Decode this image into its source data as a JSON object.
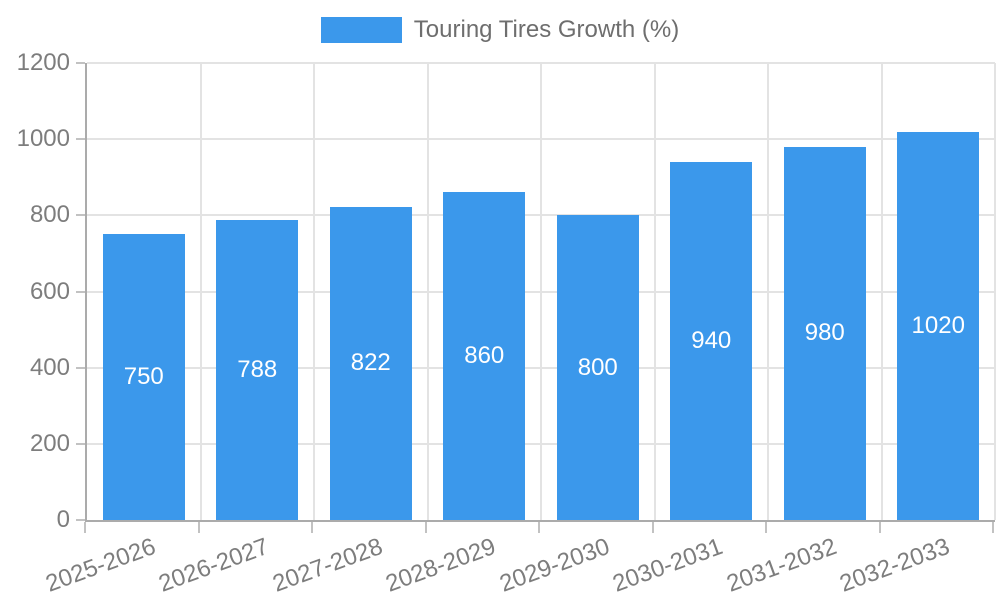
{
  "chart_data": {
    "type": "bar",
    "legend_label": "Touring Tires Growth (%)",
    "legend_position": "top",
    "categories": [
      "2025-2026",
      "2026-2027",
      "2027-2028",
      "2028-2029",
      "2029-2030",
      "2030-2031",
      "2031-2032",
      "2032-2033"
    ],
    "values": [
      750,
      788,
      822,
      860,
      800,
      940,
      980,
      1020
    ],
    "yticks": [
      0,
      200,
      400,
      600,
      800,
      1000,
      1200
    ],
    "ylim": [
      0,
      1200
    ],
    "xlabel": "",
    "ylabel": "",
    "grid": true,
    "x_tick_rotation_deg": -20,
    "colors": {
      "bar": "#3B98EB",
      "bar_label": "#FFFFFF",
      "gridline": "#E3E3E3",
      "axis_line": "#ABABAB",
      "tick_mark": "#C2C2C2",
      "tick_text": "#7D7D7D",
      "legend_text": "#6E6E6E",
      "background": "#FFFFFF"
    }
  }
}
